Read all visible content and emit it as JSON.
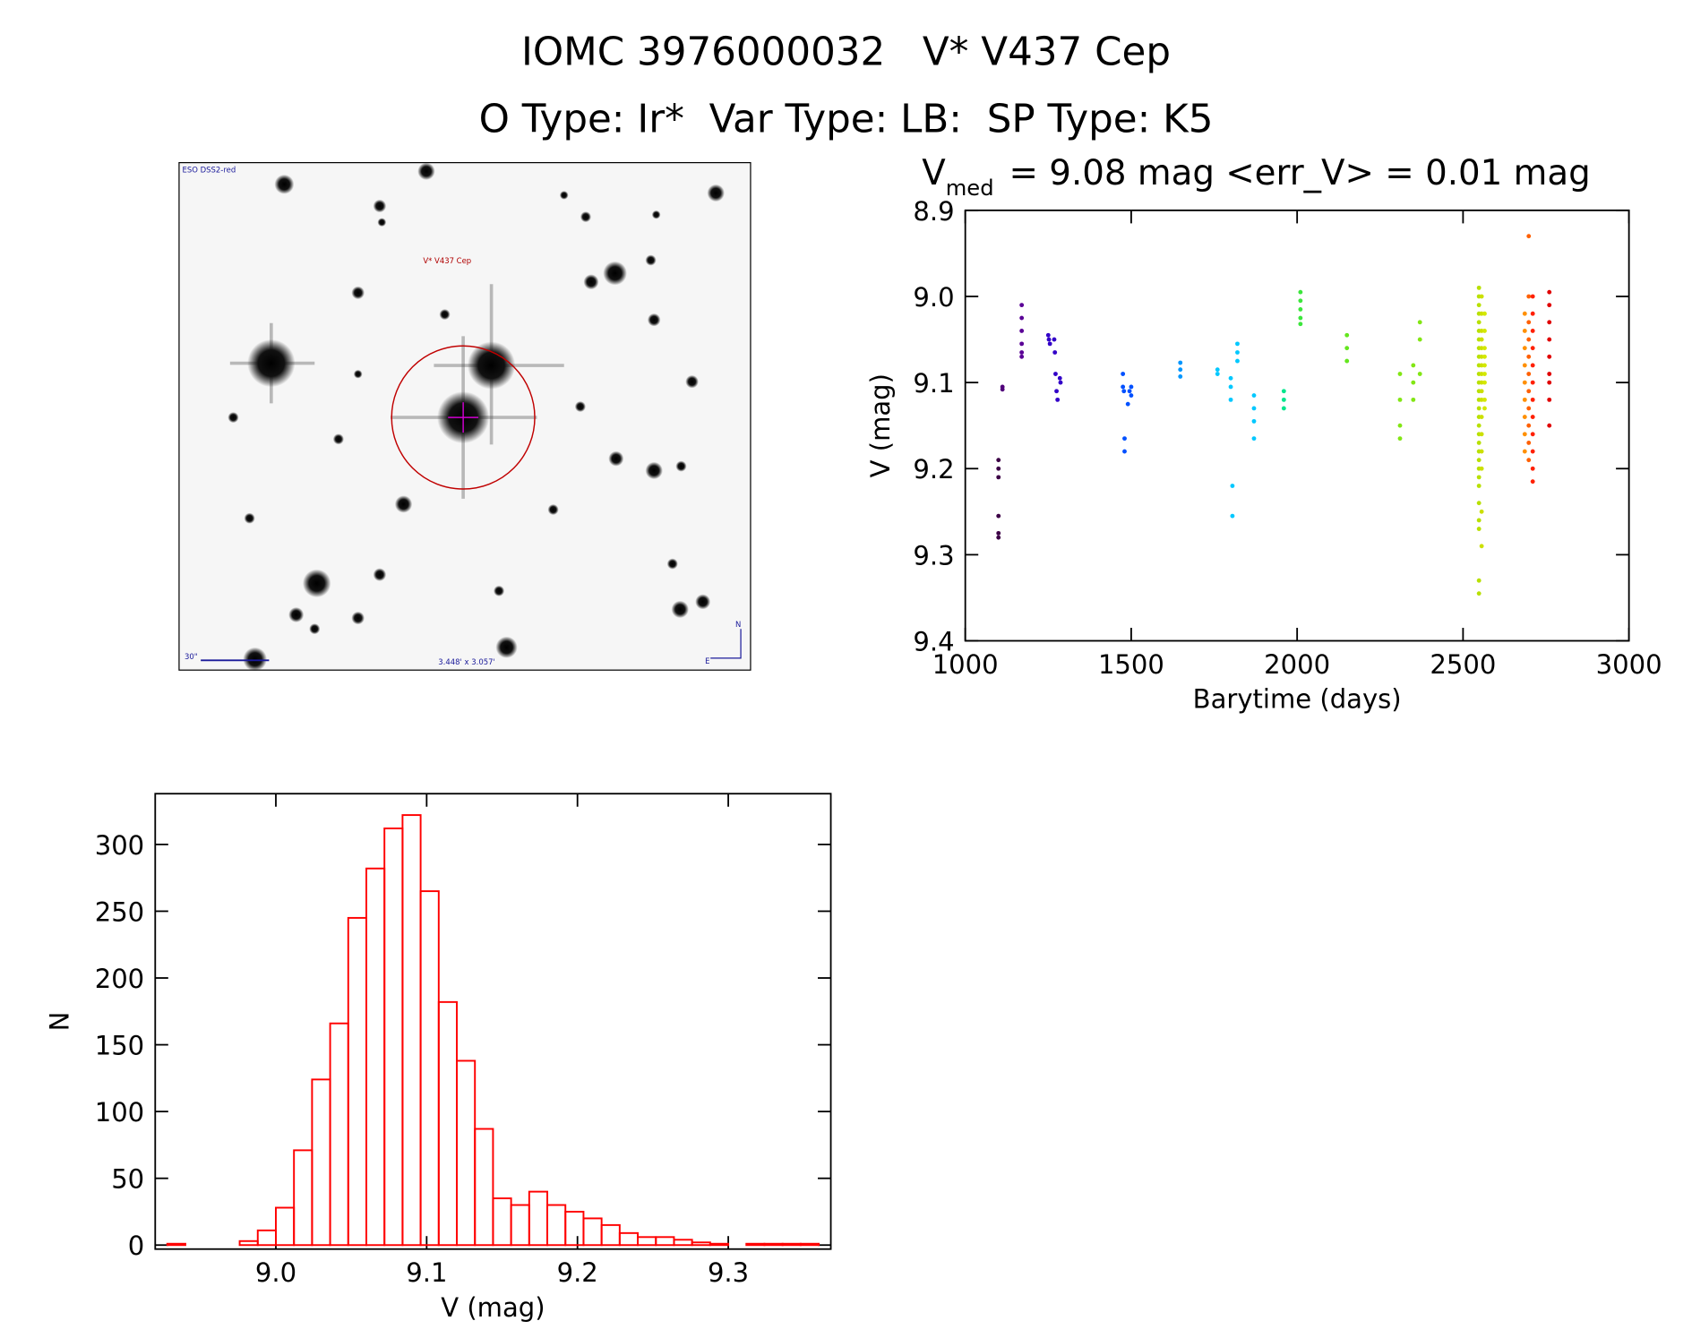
{
  "header": {
    "title": "IOMC 3976000032   V* V437 Cep",
    "subtitle": "O Type: Ir*  Var Type: LB:  SP Type: K5"
  },
  "image": {
    "survey": "ESO DSS2-red",
    "target": "V* V437 Cep",
    "scale_bar": "30\"",
    "field_size": "3.448' x 3.057'",
    "north": "N",
    "east": "E"
  },
  "chart_data": [
    {
      "type": "scatter",
      "title_prefix": "V",
      "title_subscript": "med",
      "title_rest": "= 9.08 mag <err_V> = 0.01 mag",
      "xlabel": "Barytime (days)",
      "ylabel": "V (mag)",
      "xlim": [
        1000,
        3000
      ],
      "xticks": [
        1000,
        1500,
        2000,
        2500,
        3000
      ],
      "ylim": [
        8.9,
        9.4
      ],
      "y_reversed": true,
      "yticks": [
        8.9,
        {
          "value": 9,
          "label": "9.0"
        },
        9.1,
        9.2,
        9.3,
        9.4
      ],
      "series": [
        {
          "color": "#3c0046",
          "x": [
            1100,
            1100,
            1100,
            1100,
            1100,
            1100
          ],
          "values": [
            9.19,
            9.2,
            9.21,
            9.255,
            9.275,
            9.28
          ]
        },
        {
          "color": "#50007a",
          "x": [
            1112,
            1112
          ],
          "values": [
            9.105,
            9.108
          ]
        },
        {
          "color": "#5a0096",
          "x": [
            1170,
            1170,
            1170,
            1170,
            1170,
            1170
          ],
          "values": [
            9.01,
            9.025,
            9.04,
            9.055,
            9.065,
            9.07
          ]
        },
        {
          "color": "#3200c8",
          "x": [
            1250,
            1252,
            1255,
            1268,
            1270,
            1272,
            1275,
            1278,
            1285,
            1287
          ],
          "values": [
            9.045,
            9.05,
            9.055,
            9.05,
            9.065,
            9.09,
            9.11,
            9.12,
            9.095,
            9.1
          ]
        },
        {
          "color": "#0050ff",
          "x": [
            1475,
            1475,
            1478,
            1480,
            1480,
            1490,
            1495,
            1500,
            1500
          ],
          "values": [
            9.09,
            9.105,
            9.11,
            9.165,
            9.18,
            9.125,
            9.11,
            9.115,
            9.105
          ]
        },
        {
          "color": "#0096ff",
          "x": [
            1648,
            1648,
            1648
          ],
          "values": [
            9.077,
            9.085,
            9.093
          ]
        },
        {
          "color": "#00c8ff",
          "x": [
            1760,
            1760,
            1800,
            1800,
            1800,
            1805,
            1805,
            1820,
            1820,
            1820,
            1870,
            1870,
            1870,
            1870
          ],
          "values": [
            9.085,
            9.09,
            9.095,
            9.105,
            9.12,
            9.22,
            9.255,
            9.055,
            9.065,
            9.075,
            9.115,
            9.13,
            9.145,
            9.165
          ]
        },
        {
          "color": "#00e68c",
          "x": [
            1960,
            1960,
            1960
          ],
          "values": [
            9.11,
            9.12,
            9.13
          ]
        },
        {
          "color": "#3ce63c",
          "x": [
            2010,
            2010,
            2010,
            2010,
            2010
          ],
          "values": [
            8.995,
            9.005,
            9.015,
            9.025,
            9.032
          ]
        },
        {
          "color": "#64e61e",
          "x": [
            2150,
            2150,
            2150
          ],
          "values": [
            9.045,
            9.06,
            9.075
          ]
        },
        {
          "color": "#82e614",
          "x": [
            2310,
            2310,
            2310,
            2310,
            2350,
            2350,
            2350,
            2370,
            2370,
            2370
          ],
          "values": [
            9.09,
            9.12,
            9.15,
            9.165,
            9.08,
            9.1,
            9.12,
            9.03,
            9.05,
            9.09
          ]
        },
        {
          "color": "#b8e000",
          "x": [
            2548,
            2548,
            2548,
            2548,
            2548,
            2548,
            2548,
            2548,
            2548,
            2548,
            2548,
            2548,
            2548,
            2548,
            2548,
            2548,
            2548,
            2548,
            2548,
            2548,
            2548,
            2548,
            2548,
            2548,
            2548,
            2548,
            2548,
            2548,
            2548
          ],
          "values": [
            8.99,
            9,
            9.01,
            9.02,
            9.03,
            9.04,
            9.05,
            9.06,
            9.07,
            9.08,
            9.09,
            9.1,
            9.11,
            9.12,
            9.13,
            9.14,
            9.15,
            9.16,
            9.17,
            9.18,
            9.19,
            9.2,
            9.21,
            9.22,
            9.24,
            9.26,
            9.27,
            9.33,
            9.345
          ]
        },
        {
          "color": "#cce000",
          "x": [
            2556,
            2556,
            2556,
            2556,
            2556,
            2556,
            2556,
            2556,
            2556,
            2556,
            2556,
            2556,
            2556,
            2556,
            2556,
            2556,
            2556
          ],
          "values": [
            9,
            9.02,
            9.04,
            9.05,
            9.06,
            9.07,
            9.08,
            9.09,
            9.1,
            9.11,
            9.12,
            9.14,
            9.16,
            9.18,
            9.2,
            9.25,
            9.29
          ]
        },
        {
          "color": "#d4e800",
          "x": [
            2565,
            2565,
            2565,
            2565,
            2565,
            2565,
            2565,
            2565,
            2565
          ],
          "values": [
            9.02,
            9.04,
            9.06,
            9.07,
            9.08,
            9.09,
            9.1,
            9.12,
            9.13
          ]
        },
        {
          "color": "#ff9000",
          "x": [
            2686,
            2686,
            2686,
            2686,
            2686,
            2686,
            2686,
            2686,
            2686
          ],
          "values": [
            9.02,
            9.04,
            9.06,
            9.08,
            9.1,
            9.12,
            9.14,
            9.16,
            9.18
          ]
        },
        {
          "color": "#ff6000",
          "x": [
            2698,
            2698,
            2698,
            2698,
            2698,
            2698,
            2698,
            2698,
            2698,
            2698,
            2698
          ],
          "values": [
            8.93,
            9,
            9.03,
            9.05,
            9.07,
            9.09,
            9.11,
            9.13,
            9.15,
            9.17,
            9.19
          ]
        },
        {
          "color": "#ff2000",
          "x": [
            2710,
            2710,
            2710,
            2710,
            2710,
            2710,
            2710,
            2710,
            2710,
            2710,
            2710,
            2710
          ],
          "values": [
            9,
            9.02,
            9.04,
            9.06,
            9.08,
            9.1,
            9.12,
            9.14,
            9.16,
            9.18,
            9.2,
            9.215
          ]
        },
        {
          "color": "#e00000",
          "x": [
            2760,
            2760,
            2760,
            2760,
            2760,
            2760,
            2760,
            2760,
            2760
          ],
          "values": [
            8.995,
            9.01,
            9.03,
            9.05,
            9.07,
            9.09,
            9.1,
            9.12,
            9.15
          ]
        }
      ]
    },
    {
      "type": "histogram",
      "color": "#ff0000",
      "xlabel": "V (mag)",
      "ylabel": "N",
      "xlim": [
        8.92,
        9.368
      ],
      "xticks": [
        {
          "value": 9,
          "label": "9.0"
        },
        9.1,
        9.2,
        9.3
      ],
      "ylim": [
        -3,
        338
      ],
      "yticks": [
        0,
        50,
        100,
        150,
        200,
        250,
        300
      ],
      "bins": [
        8.928,
        8.94,
        8.952,
        8.964,
        8.976,
        8.988,
        9.0,
        9.012,
        9.024,
        9.036,
        9.048,
        9.06,
        9.072,
        9.084,
        9.096,
        9.108,
        9.12,
        9.132,
        9.144,
        9.156,
        9.168,
        9.18,
        9.192,
        9.204,
        9.216,
        9.228,
        9.24,
        9.252,
        9.264,
        9.276,
        9.288,
        9.3,
        9.312,
        9.324,
        9.336,
        9.348,
        9.36
      ],
      "values": [
        1,
        0,
        0,
        0,
        3,
        11,
        28,
        71,
        124,
        166,
        245,
        282,
        312,
        322,
        265,
        182,
        138,
        87,
        35,
        30,
        40,
        30,
        25,
        20,
        15,
        9,
        6,
        6,
        4,
        2,
        1,
        0,
        1,
        1,
        1,
        1
      ]
    }
  ]
}
